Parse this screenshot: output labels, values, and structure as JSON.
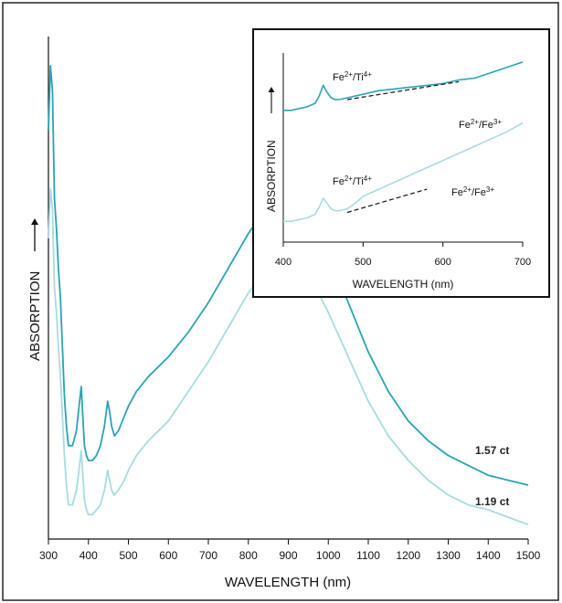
{
  "chart_data": [
    {
      "type": "line",
      "xlabel": "WAVELENGTH (nm)",
      "ylabel": "ABSORPTION",
      "xlim": [
        300,
        1500
      ],
      "xticks": [
        300,
        400,
        500,
        600,
        700,
        800,
        900,
        1000,
        1100,
        1200,
        1300,
        1400,
        1500
      ],
      "y_units": "arbitrary (no numeric scale printed)",
      "ylim": [
        0,
        100
      ],
      "grid": false,
      "colors": {
        "series_1": "#2aa3b4",
        "series_2": "#a9dbe1"
      },
      "series": [
        {
          "name": "1.57 ct",
          "x": [
            300,
            305,
            310,
            315,
            320,
            325,
            330,
            335,
            340,
            345,
            350,
            360,
            370,
            378,
            382,
            386,
            390,
            395,
            400,
            410,
            420,
            430,
            440,
            448,
            453,
            458,
            465,
            475,
            490,
            500,
            520,
            550,
            600,
            650,
            700,
            750,
            800,
            850,
            880,
            900,
            920,
            950,
            1000,
            1050,
            1100,
            1150,
            1200,
            1250,
            1300,
            1350,
            1400,
            1450,
            1500
          ],
          "y": [
            82,
            95,
            90,
            68,
            62,
            54,
            48,
            38,
            28,
            22,
            18,
            18,
            21,
            27,
            30,
            24,
            18,
            16,
            15,
            15,
            16,
            18,
            22,
            27,
            25,
            22,
            20,
            21,
            24,
            26,
            29,
            32,
            36,
            41,
            47,
            54,
            61,
            67,
            70,
            71,
            70,
            66,
            57,
            47,
            37,
            29,
            23,
            19,
            16,
            14,
            12,
            11,
            10
          ]
        },
        {
          "name": "1.19 ct",
          "x": [
            300,
            305,
            310,
            315,
            320,
            325,
            330,
            335,
            340,
            345,
            350,
            360,
            370,
            378,
            382,
            386,
            390,
            395,
            400,
            410,
            420,
            430,
            440,
            448,
            453,
            458,
            465,
            475,
            490,
            500,
            520,
            550,
            600,
            650,
            700,
            750,
            800,
            850,
            880,
            900,
            920,
            950,
            1000,
            1050,
            1100,
            1150,
            1200,
            1250,
            1300,
            1350,
            1400,
            1450,
            1500
          ],
          "y": [
            60,
            70,
            66,
            50,
            45,
            38,
            32,
            24,
            16,
            10,
            6,
            6,
            9,
            14,
            17,
            12,
            7,
            5,
            4,
            4,
            5,
            6,
            9,
            13,
            11,
            9,
            8,
            9,
            11,
            13,
            16,
            19,
            23,
            29,
            35,
            42,
            49,
            54,
            57,
            58,
            57,
            53,
            45,
            36,
            27,
            20,
            15,
            11,
            8,
            6,
            5,
            3.5,
            2
          ]
        }
      ]
    },
    {
      "type": "line",
      "title": "inset",
      "xlabel": "WAVELENGTH (nm)",
      "ylabel": "ABSORPTION",
      "xlim": [
        400,
        700
      ],
      "xticks": [
        400,
        500,
        600,
        700
      ],
      "y_units": "arbitrary (no numeric scale printed)",
      "ylim": [
        0,
        100
      ],
      "grid": false,
      "series": [
        {
          "name": "upper",
          "x": [
            400,
            410,
            420,
            430,
            440,
            445,
            450,
            455,
            460,
            465,
            470,
            480,
            490,
            500,
            520,
            540,
            560,
            580,
            600,
            620,
            640,
            660,
            680,
            700
          ],
          "y": [
            70,
            70,
            71,
            72,
            74,
            78,
            84,
            80,
            77,
            76,
            76,
            77,
            78,
            79,
            81,
            82,
            83,
            84,
            85,
            87,
            88,
            91,
            94,
            97
          ]
        },
        {
          "name": "lower",
          "x": [
            400,
            410,
            420,
            430,
            440,
            445,
            450,
            455,
            460,
            465,
            470,
            480,
            490,
            500,
            520,
            540,
            560,
            580,
            600,
            620,
            640,
            660,
            680,
            700
          ],
          "y": [
            8,
            8,
            9,
            10,
            12,
            16,
            21,
            18,
            15,
            14,
            14,
            15,
            18,
            22,
            26,
            30,
            34,
            38,
            42,
            46,
            50,
            54,
            58,
            63
          ]
        }
      ],
      "dashed_baselines": [
        {
          "x": [
            480,
            620
          ],
          "y": [
            76,
            86
          ]
        },
        {
          "x": [
            480,
            580
          ],
          "y": [
            13,
            26
          ]
        }
      ],
      "annotations": {
        "upper_left": {
          "base": "Fe",
          "sup": "2+",
          "sep": "/Ti",
          "sup2": "4+"
        },
        "upper_right": {
          "base": "Fe",
          "sup": "2+",
          "sep": "/Fe",
          "sup2": "3+"
        },
        "lower_left": {
          "base": "Fe",
          "sup": "2+",
          "sep": "/Ti",
          "sup2": "4+"
        },
        "lower_right": {
          "base": "Fe",
          "sup": "2+",
          "sep": "/Fe",
          "sup2": "3+"
        }
      }
    }
  ]
}
